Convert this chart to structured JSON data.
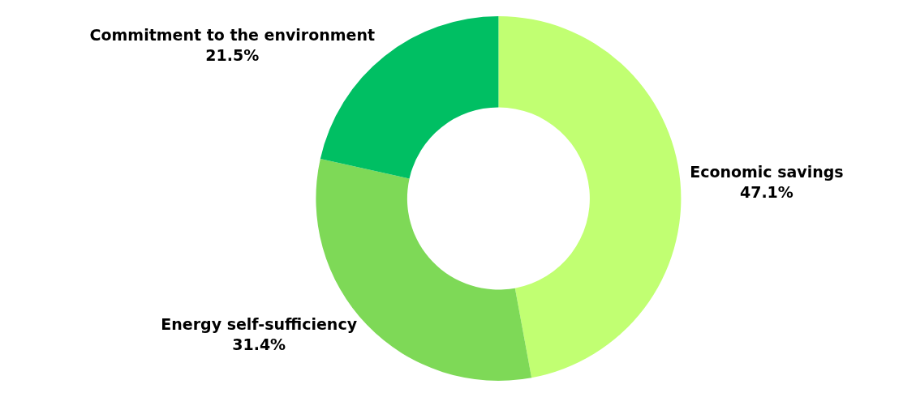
{
  "chart_data": {
    "type": "donut",
    "categories": [
      "Economic savings",
      "Energy self-sufficiency",
      "Commitment to the environment"
    ],
    "values": [
      47.1,
      31.4,
      21.5
    ],
    "value_labels": [
      "47.1%",
      "31.4%",
      "21.5%"
    ],
    "colors": [
      "#c1ff72",
      "#7ed957",
      "#00bf63"
    ],
    "legend": false
  }
}
